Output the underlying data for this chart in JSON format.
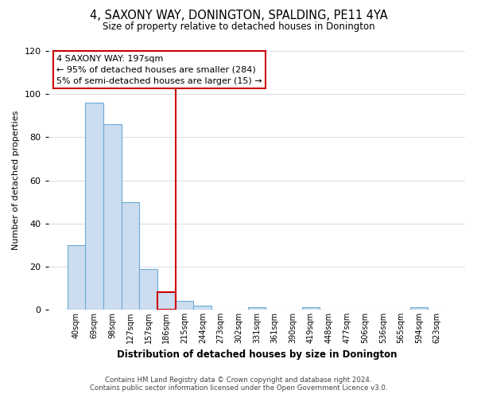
{
  "title": "4, SAXONY WAY, DONINGTON, SPALDING, PE11 4YA",
  "subtitle": "Size of property relative to detached houses in Donington",
  "xlabel": "Distribution of detached houses by size in Donington",
  "ylabel": "Number of detached properties",
  "bar_labels": [
    "40sqm",
    "69sqm",
    "98sqm",
    "127sqm",
    "157sqm",
    "186sqm",
    "215sqm",
    "244sqm",
    "273sqm",
    "302sqm",
    "331sqm",
    "361sqm",
    "390sqm",
    "419sqm",
    "448sqm",
    "477sqm",
    "506sqm",
    "536sqm",
    "565sqm",
    "594sqm",
    "623sqm"
  ],
  "bar_values": [
    30,
    96,
    86,
    50,
    19,
    8,
    4,
    2,
    0,
    0,
    1,
    0,
    0,
    1,
    0,
    0,
    0,
    0,
    0,
    1,
    0
  ],
  "bar_color": "#ccddf0",
  "bar_edge_color": "#6aaad4",
  "highlight_bar_index": 5,
  "highlight_bar_edge_color": "#cc0000",
  "vline_x": 5.5,
  "vline_color": "#cc0000",
  "ylim": [
    0,
    120
  ],
  "yticks": [
    0,
    20,
    40,
    60,
    80,
    100,
    120
  ],
  "annotation_line1": "4 SAXONY WAY: 197sqm",
  "annotation_line2": "← 95% of detached houses are smaller (284)",
  "annotation_line3": "5% of semi-detached houses are larger (15) →",
  "annotation_box_color": "#ffffff",
  "annotation_box_edge_color": "#cc0000",
  "footer_line1": "Contains HM Land Registry data © Crown copyright and database right 2024.",
  "footer_line2": "Contains public sector information licensed under the Open Government Licence v3.0.",
  "background_color": "#ffffff",
  "grid_color": "#ccd8e8"
}
